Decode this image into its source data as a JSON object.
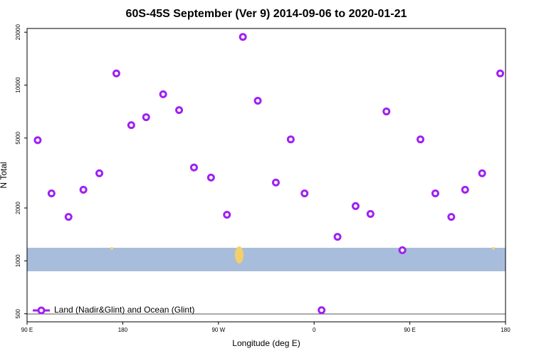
{
  "chart_data": {
    "type": "scatter",
    "title": "60S-45S September (Ver 9)   2014-09-06 to 2020-01-21",
    "x_label": "Longitude (deg E)",
    "y_label": "N Total",
    "log_y": true,
    "legend": "bottom-left",
    "xlim": [
      90,
      540
    ],
    "xticks": [
      {
        "value": 90,
        "label": "90 E"
      },
      {
        "value": 180,
        "label": "180"
      },
      {
        "value": 270,
        "label": "90 W"
      },
      {
        "value": 360,
        "label": "0"
      },
      {
        "value": 450,
        "label": "90 E"
      },
      {
        "value": 540,
        "label": "180"
      }
    ],
    "ylim": [
      450,
      21000
    ],
    "yticks": [
      500,
      1000,
      2000,
      5000,
      10000,
      20000
    ],
    "series": [
      {
        "name": "Land (Nadir&Glint) and Ocean (Glint)",
        "color": "#a020f0",
        "x": [
          100,
          113,
          129,
          143,
          158,
          174,
          188,
          202,
          218,
          233,
          247,
          263,
          278,
          293,
          307,
          324,
          338,
          351,
          367,
          382,
          399,
          413,
          428,
          443,
          460,
          474,
          489,
          502,
          518,
          535
        ],
        "values": [
          4860,
          2420,
          1780,
          2540,
          3150,
          11650,
          5920,
          6570,
          8870,
          7210,
          3400,
          2980,
          1830,
          18800,
          8150,
          2790,
          4910,
          2420,
          524,
          1370,
          2050,
          1850,
          7080,
          1150,
          4910,
          2420,
          1780,
          2540,
          3150,
          11650
        ]
      }
    ]
  }
}
